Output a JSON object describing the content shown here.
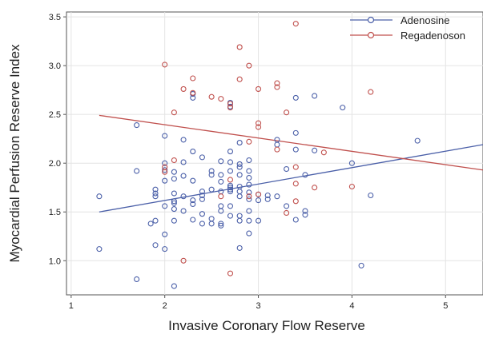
{
  "chart_data": {
    "type": "scatter",
    "title": "",
    "xlabel": "Invasive Coronary Flow Reserve",
    "ylabel": "Myocardial Perfusion Reserve Index",
    "xlim": [
      0.95,
      5.4
    ],
    "ylim": [
      0.65,
      3.55
    ],
    "xticks": [
      "1",
      "2",
      "3",
      "4",
      "5"
    ],
    "yticks": [
      "1.0",
      "1.5",
      "2.0",
      "2.5",
      "3.0",
      "3.5"
    ],
    "grid": true,
    "legend_position": "top-right",
    "series": [
      {
        "name": "Adenosine",
        "color": "#4a5fa8",
        "points": [
          [
            1.3,
            1.66
          ],
          [
            1.3,
            1.12
          ],
          [
            1.7,
            2.39
          ],
          [
            1.7,
            1.92
          ],
          [
            1.7,
            0.81
          ],
          [
            1.85,
            1.38
          ],
          [
            1.9,
            1.73
          ],
          [
            1.9,
            1.69
          ],
          [
            1.9,
            1.66
          ],
          [
            1.9,
            1.41
          ],
          [
            1.9,
            1.16
          ],
          [
            2.0,
            2.28
          ],
          [
            2.0,
            2.0
          ],
          [
            2.0,
            1.93
          ],
          [
            2.0,
            1.82
          ],
          [
            2.0,
            1.56
          ],
          [
            2.0,
            1.27
          ],
          [
            2.0,
            1.12
          ],
          [
            2.1,
            1.91
          ],
          [
            2.1,
            1.84
          ],
          [
            2.1,
            1.69
          ],
          [
            2.1,
            1.61
          ],
          [
            2.1,
            1.59
          ],
          [
            2.1,
            1.53
          ],
          [
            2.1,
            1.41
          ],
          [
            2.1,
            0.74
          ],
          [
            2.2,
            2.24
          ],
          [
            2.2,
            2.01
          ],
          [
            2.2,
            1.87
          ],
          [
            2.2,
            1.66
          ],
          [
            2.2,
            1.51
          ],
          [
            2.3,
            2.71
          ],
          [
            2.3,
            2.67
          ],
          [
            2.3,
            2.12
          ],
          [
            2.3,
            1.82
          ],
          [
            2.3,
            1.62
          ],
          [
            2.3,
            1.58
          ],
          [
            2.3,
            1.42
          ],
          [
            2.4,
            2.06
          ],
          [
            2.4,
            1.71
          ],
          [
            2.4,
            1.67
          ],
          [
            2.4,
            1.63
          ],
          [
            2.4,
            1.48
          ],
          [
            2.4,
            1.38
          ],
          [
            2.5,
            1.92
          ],
          [
            2.5,
            1.88
          ],
          [
            2.5,
            1.73
          ],
          [
            2.5,
            1.43
          ],
          [
            2.5,
            1.38
          ],
          [
            2.6,
            2.02
          ],
          [
            2.6,
            1.88
          ],
          [
            2.6,
            1.81
          ],
          [
            2.6,
            1.71
          ],
          [
            2.6,
            1.56
          ],
          [
            2.6,
            1.51
          ],
          [
            2.6,
            1.38
          ],
          [
            2.6,
            1.36
          ],
          [
            2.7,
            2.62
          ],
          [
            2.7,
            2.58
          ],
          [
            2.7,
            2.12
          ],
          [
            2.7,
            2.01
          ],
          [
            2.7,
            1.92
          ],
          [
            2.7,
            1.77
          ],
          [
            2.7,
            1.75
          ],
          [
            2.7,
            1.73
          ],
          [
            2.7,
            1.71
          ],
          [
            2.7,
            1.56
          ],
          [
            2.7,
            1.46
          ],
          [
            2.8,
            2.21
          ],
          [
            2.8,
            1.99
          ],
          [
            2.8,
            1.96
          ],
          [
            2.8,
            1.88
          ],
          [
            2.8,
            1.76
          ],
          [
            2.8,
            1.71
          ],
          [
            2.8,
            1.66
          ],
          [
            2.8,
            1.46
          ],
          [
            2.8,
            1.41
          ],
          [
            2.8,
            1.13
          ],
          [
            2.9,
            2.03
          ],
          [
            2.9,
            1.92
          ],
          [
            2.9,
            1.85
          ],
          [
            2.9,
            1.78
          ],
          [
            2.9,
            1.7
          ],
          [
            2.9,
            1.63
          ],
          [
            2.9,
            1.51
          ],
          [
            2.9,
            1.41
          ],
          [
            2.9,
            1.28
          ],
          [
            3.0,
            1.68
          ],
          [
            3.0,
            1.62
          ],
          [
            3.0,
            1.41
          ],
          [
            3.1,
            1.67
          ],
          [
            3.1,
            1.63
          ],
          [
            3.2,
            2.24
          ],
          [
            3.2,
            2.19
          ],
          [
            3.2,
            1.66
          ],
          [
            3.3,
            1.94
          ],
          [
            3.3,
            1.56
          ],
          [
            3.4,
            2.67
          ],
          [
            3.4,
            2.31
          ],
          [
            3.4,
            2.14
          ],
          [
            3.4,
            1.42
          ],
          [
            3.5,
            1.88
          ],
          [
            3.5,
            1.51
          ],
          [
            3.5,
            1.47
          ],
          [
            3.6,
            2.69
          ],
          [
            3.6,
            2.13
          ],
          [
            3.9,
            2.57
          ],
          [
            4.0,
            2.0
          ],
          [
            4.1,
            0.95
          ],
          [
            4.2,
            1.67
          ],
          [
            4.7,
            2.23
          ]
        ]
      },
      {
        "name": "Regadenoson",
        "color": "#c0504d",
        "points": [
          [
            2.0,
            3.01
          ],
          [
            2.0,
            1.96
          ],
          [
            2.0,
            1.91
          ],
          [
            2.1,
            2.52
          ],
          [
            2.1,
            2.03
          ],
          [
            2.2,
            2.76
          ],
          [
            2.2,
            1.0
          ],
          [
            2.3,
            2.87
          ],
          [
            2.3,
            2.72
          ],
          [
            2.5,
            2.68
          ],
          [
            2.6,
            2.66
          ],
          [
            2.6,
            1.66
          ],
          [
            2.7,
            2.61
          ],
          [
            2.7,
            2.57
          ],
          [
            2.7,
            1.83
          ],
          [
            2.7,
            0.87
          ],
          [
            2.8,
            3.19
          ],
          [
            2.8,
            2.86
          ],
          [
            2.9,
            3.0
          ],
          [
            2.9,
            2.22
          ],
          [
            2.9,
            1.66
          ],
          [
            3.0,
            2.76
          ],
          [
            3.0,
            2.41
          ],
          [
            3.0,
            2.37
          ],
          [
            3.0,
            1.68
          ],
          [
            3.2,
            2.82
          ],
          [
            3.2,
            2.78
          ],
          [
            3.2,
            2.14
          ],
          [
            3.3,
            2.52
          ],
          [
            3.3,
            1.49
          ],
          [
            3.4,
            3.43
          ],
          [
            3.4,
            1.96
          ],
          [
            3.4,
            1.79
          ],
          [
            3.4,
            1.61
          ],
          [
            3.6,
            1.75
          ],
          [
            3.7,
            2.11
          ],
          [
            4.0,
            1.76
          ],
          [
            4.2,
            2.73
          ]
        ]
      }
    ],
    "fit_lines": [
      {
        "series": "Adenosine",
        "x": [
          1.3,
          5.4
        ],
        "y": [
          1.5,
          2.19
        ]
      },
      {
        "series": "Regadenoson",
        "x": [
          1.3,
          5.4
        ],
        "y": [
          2.49,
          1.93
        ]
      }
    ]
  }
}
